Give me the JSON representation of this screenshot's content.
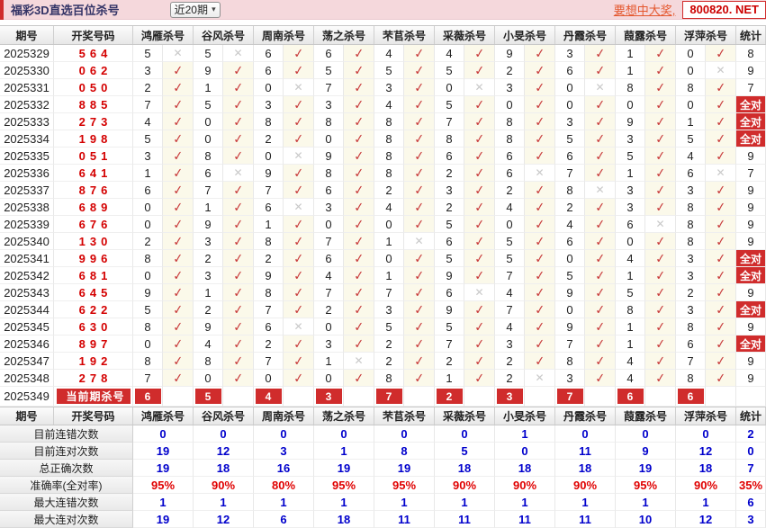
{
  "header": {
    "title": "福彩3D直选百位杀号",
    "range_value": "近20期",
    "promo_text": "要想中大奖,",
    "site": "800820. NET"
  },
  "colors": {
    "accent_red": "#d02c2c",
    "topbar_pink": "#f5d8dc",
    "check_red": "#c83c3c",
    "cross_gray": "#c9c9c9",
    "draw_red": "#d40000",
    "value_blue": "#0000cc",
    "percent_red": "#e00000"
  },
  "icons": {
    "check": "✓",
    "cross": "✕",
    "dropdown_arrow": "▾"
  },
  "table": {
    "headers": [
      "期号",
      "开奖号码",
      "鸿雁杀号",
      "谷风杀号",
      "周南杀号",
      "荡之杀号",
      "芣苢杀号",
      "采薇杀号",
      "小旻杀号",
      "丹霞杀号",
      "葭露杀号",
      "浮萍杀号",
      "统计"
    ],
    "all_correct_label": "全对",
    "rows": [
      {
        "period": "2025329",
        "draw": "564",
        "kills": [
          5,
          5,
          6,
          6,
          4,
          4,
          9,
          3,
          1,
          0
        ],
        "marks": [
          0,
          0,
          1,
          1,
          1,
          1,
          1,
          1,
          1,
          1
        ],
        "stat": "8"
      },
      {
        "period": "2025330",
        "draw": "062",
        "kills": [
          3,
          9,
          6,
          5,
          5,
          5,
          2,
          6,
          1,
          0
        ],
        "marks": [
          1,
          1,
          1,
          1,
          1,
          1,
          1,
          1,
          1,
          0
        ],
        "stat": "9"
      },
      {
        "period": "2025331",
        "draw": "050",
        "kills": [
          2,
          1,
          0,
          7,
          3,
          0,
          3,
          0,
          8,
          8
        ],
        "marks": [
          1,
          1,
          0,
          1,
          1,
          0,
          1,
          0,
          1,
          1
        ],
        "stat": "7"
      },
      {
        "period": "2025332",
        "draw": "885",
        "kills": [
          7,
          5,
          3,
          3,
          4,
          5,
          0,
          0,
          0,
          0
        ],
        "marks": [
          1,
          1,
          1,
          1,
          1,
          1,
          1,
          1,
          1,
          1
        ],
        "stat": "全对"
      },
      {
        "period": "2025333",
        "draw": "273",
        "kills": [
          4,
          0,
          8,
          8,
          8,
          7,
          8,
          3,
          9,
          1
        ],
        "marks": [
          1,
          1,
          1,
          1,
          1,
          1,
          1,
          1,
          1,
          1
        ],
        "stat": "全对"
      },
      {
        "period": "2025334",
        "draw": "198",
        "kills": [
          5,
          0,
          2,
          0,
          8,
          8,
          8,
          5,
          3,
          5
        ],
        "marks": [
          1,
          1,
          1,
          1,
          1,
          1,
          1,
          1,
          1,
          1
        ],
        "stat": "全对"
      },
      {
        "period": "2025335",
        "draw": "051",
        "kills": [
          3,
          8,
          0,
          9,
          8,
          6,
          6,
          6,
          5,
          4
        ],
        "marks": [
          1,
          1,
          0,
          1,
          1,
          1,
          1,
          1,
          1,
          1
        ],
        "stat": "9"
      },
      {
        "period": "2025336",
        "draw": "641",
        "kills": [
          1,
          6,
          9,
          8,
          8,
          2,
          6,
          7,
          1,
          6
        ],
        "marks": [
          1,
          0,
          1,
          1,
          1,
          1,
          0,
          1,
          1,
          0
        ],
        "stat": "7"
      },
      {
        "period": "2025337",
        "draw": "876",
        "kills": [
          6,
          7,
          7,
          6,
          2,
          3,
          2,
          8,
          3,
          3
        ],
        "marks": [
          1,
          1,
          1,
          1,
          1,
          1,
          1,
          0,
          1,
          1
        ],
        "stat": "9"
      },
      {
        "period": "2025338",
        "draw": "689",
        "kills": [
          0,
          1,
          6,
          3,
          4,
          2,
          4,
          2,
          3,
          8
        ],
        "marks": [
          1,
          1,
          0,
          1,
          1,
          1,
          1,
          1,
          1,
          1
        ],
        "stat": "9"
      },
      {
        "period": "2025339",
        "draw": "676",
        "kills": [
          0,
          9,
          1,
          0,
          0,
          5,
          0,
          4,
          6,
          8
        ],
        "marks": [
          1,
          1,
          1,
          1,
          1,
          1,
          1,
          1,
          0,
          1
        ],
        "stat": "9"
      },
      {
        "period": "2025340",
        "draw": "130",
        "kills": [
          2,
          3,
          8,
          7,
          1,
          6,
          5,
          6,
          0,
          8
        ],
        "marks": [
          1,
          1,
          1,
          1,
          0,
          1,
          1,
          1,
          1,
          1
        ],
        "stat": "9"
      },
      {
        "period": "2025341",
        "draw": "996",
        "kills": [
          8,
          2,
          2,
          6,
          0,
          5,
          5,
          0,
          4,
          3
        ],
        "marks": [
          1,
          1,
          1,
          1,
          1,
          1,
          1,
          1,
          1,
          1
        ],
        "stat": "全对"
      },
      {
        "period": "2025342",
        "draw": "681",
        "kills": [
          0,
          3,
          9,
          4,
          1,
          9,
          7,
          5,
          1,
          3
        ],
        "marks": [
          1,
          1,
          1,
          1,
          1,
          1,
          1,
          1,
          1,
          1
        ],
        "stat": "全对"
      },
      {
        "period": "2025343",
        "draw": "645",
        "kills": [
          9,
          1,
          8,
          7,
          7,
          6,
          4,
          9,
          5,
          2
        ],
        "marks": [
          1,
          1,
          1,
          1,
          1,
          0,
          1,
          1,
          1,
          1
        ],
        "stat": "9"
      },
      {
        "period": "2025344",
        "draw": "622",
        "kills": [
          5,
          2,
          7,
          2,
          3,
          9,
          7,
          0,
          8,
          3
        ],
        "marks": [
          1,
          1,
          1,
          1,
          1,
          1,
          1,
          1,
          1,
          1
        ],
        "stat": "全对"
      },
      {
        "period": "2025345",
        "draw": "630",
        "kills": [
          8,
          9,
          6,
          0,
          5,
          5,
          4,
          9,
          1,
          8
        ],
        "marks": [
          1,
          1,
          0,
          1,
          1,
          1,
          1,
          1,
          1,
          1
        ],
        "stat": "9"
      },
      {
        "period": "2025346",
        "draw": "897",
        "kills": [
          0,
          4,
          2,
          3,
          2,
          7,
          3,
          7,
          1,
          6
        ],
        "marks": [
          1,
          1,
          1,
          1,
          1,
          1,
          1,
          1,
          1,
          1
        ],
        "stat": "全对"
      },
      {
        "period": "2025347",
        "draw": "192",
        "kills": [
          8,
          8,
          7,
          1,
          2,
          2,
          2,
          8,
          4,
          7
        ],
        "marks": [
          1,
          1,
          1,
          0,
          1,
          1,
          1,
          1,
          1,
          1
        ],
        "stat": "9"
      },
      {
        "period": "2025348",
        "draw": "278",
        "kills": [
          7,
          0,
          0,
          0,
          8,
          1,
          2,
          3,
          4,
          8
        ],
        "marks": [
          1,
          1,
          1,
          1,
          1,
          1,
          0,
          1,
          1,
          1
        ],
        "stat": "9"
      }
    ],
    "current": {
      "period": "2025349",
      "label": "当前期杀号",
      "kills": [
        6,
        5,
        4,
        3,
        7,
        2,
        3,
        7,
        6,
        6
      ]
    }
  },
  "stats": {
    "headers": [
      "期号",
      "开奖号码",
      "鸿雁杀号",
      "谷风杀号",
      "周南杀号",
      "荡之杀号",
      "芣苢杀号",
      "采薇杀号",
      "小旻杀号",
      "丹霞杀号",
      "葭露杀号",
      "浮萍杀号",
      "统计"
    ],
    "rows": [
      {
        "label": "目前连错次数",
        "red": false,
        "values": [
          "0",
          "0",
          "0",
          "0",
          "0",
          "0",
          "1",
          "0",
          "0",
          "0",
          "2"
        ]
      },
      {
        "label": "目前连对次数",
        "red": false,
        "values": [
          "19",
          "12",
          "3",
          "1",
          "8",
          "5",
          "0",
          "11",
          "9",
          "12",
          "0"
        ]
      },
      {
        "label": "总正确次数",
        "red": false,
        "values": [
          "19",
          "18",
          "16",
          "19",
          "19",
          "18",
          "18",
          "18",
          "19",
          "18",
          "7"
        ]
      },
      {
        "label": "准确率(全对率)",
        "red": true,
        "values": [
          "95%",
          "90%",
          "80%",
          "95%",
          "95%",
          "90%",
          "90%",
          "90%",
          "95%",
          "90%",
          "35%"
        ]
      },
      {
        "label": "最大连错次数",
        "red": false,
        "values": [
          "1",
          "1",
          "1",
          "1",
          "1",
          "1",
          "1",
          "1",
          "1",
          "1",
          "6"
        ]
      },
      {
        "label": "最大连对次数",
        "red": false,
        "values": [
          "19",
          "12",
          "6",
          "18",
          "11",
          "11",
          "11",
          "11",
          "10",
          "12",
          "3"
        ]
      }
    ]
  }
}
